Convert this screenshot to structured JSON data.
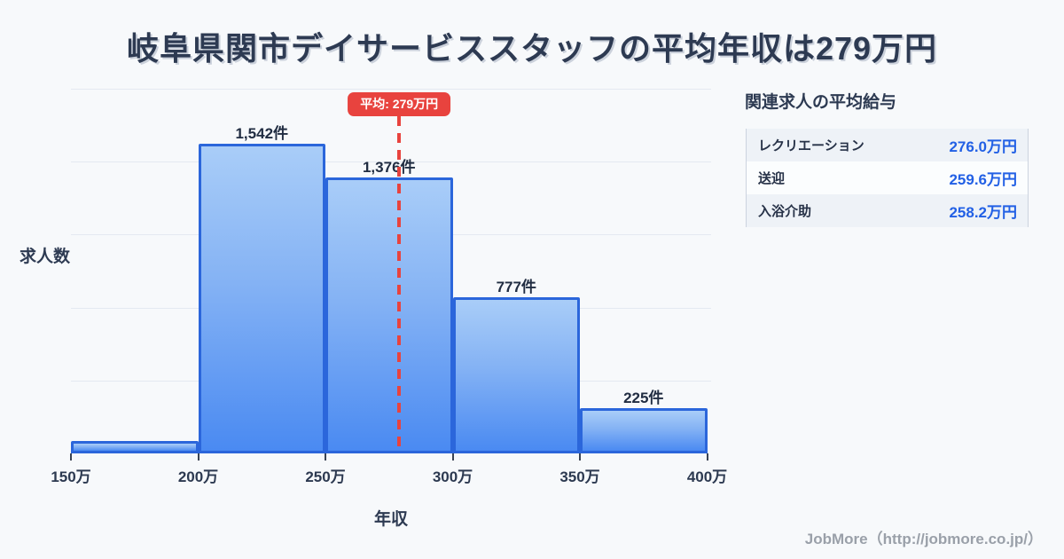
{
  "page": {
    "background": "#f7f9fb"
  },
  "title": "岐阜県関市デイサービススタッフの平均年収は279万円",
  "chart_data": {
    "type": "bar",
    "title": "岐阜県関市デイサービススタッフの平均年収は279万円",
    "xlabel": "年収",
    "ylabel": "求人数",
    "bin_edges": [
      150,
      200,
      250,
      300,
      350,
      400
    ],
    "x_tick_labels": [
      "150万",
      "200万",
      "250万",
      "300万",
      "350万",
      "400万"
    ],
    "values": [
      62,
      1542,
      1376,
      777,
      225
    ],
    "bar_labels": [
      "",
      "1,542件",
      "1,376件",
      "777件",
      "225件"
    ],
    "unit": "件",
    "average": 279,
    "average_label": "平均: 279万円",
    "ylim": [
      0,
      1815
    ],
    "grid": true,
    "legend": "none",
    "colors": {
      "bar_gradient_top": "#a9cdf8",
      "bar_gradient_bottom": "#4a8af2",
      "bar_border": "#2b66db",
      "average_line": "#e8433e",
      "gridline": "#e4e9f1",
      "value_text": "#212d42"
    }
  },
  "related_panel": {
    "title": "関連求人の平均給与",
    "rows": [
      {
        "label": "レクリエーション",
        "value": "276.0万円"
      },
      {
        "label": "送迎",
        "value": "259.6万円"
      },
      {
        "label": "入浴介助",
        "value": "258.2万円"
      }
    ]
  },
  "footer": {
    "credit": "JobMore（http://jobmore.co.jp/）"
  }
}
